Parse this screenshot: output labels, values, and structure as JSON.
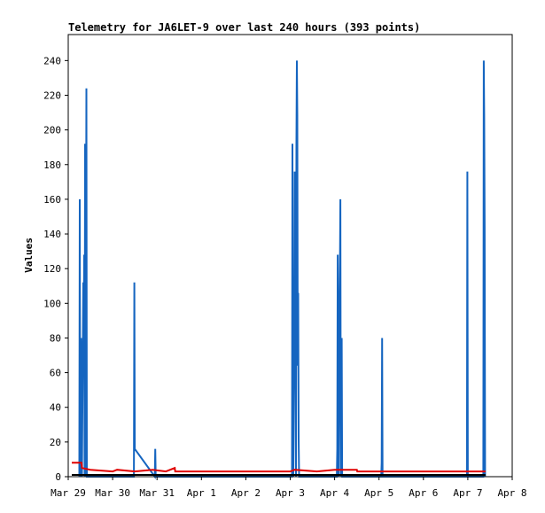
{
  "chart_data": {
    "type": "line",
    "title": "Telemetry for JA6LET-9 over last 240 hours (393 points)",
    "xlabel": "",
    "ylabel": "Values",
    "x_ticks": [
      "Mar 29",
      "Mar 30",
      "Mar 31",
      "Apr 1",
      "Apr 2",
      "Apr 3",
      "Apr 4",
      "Apr 5",
      "Apr 6",
      "Apr 7",
      "Apr 8"
    ],
    "x_unit": "days since Mar 29 00:00",
    "xlim": [
      0,
      10
    ],
    "ylim": [
      0,
      255
    ],
    "y_ticks": [
      0,
      20,
      40,
      60,
      80,
      100,
      120,
      140,
      160,
      180,
      200,
      220,
      240
    ],
    "grid": false,
    "legend": "none",
    "colors": {
      "blue": "#1565c0",
      "red": "#e00000",
      "black": "#000000"
    },
    "series": [
      {
        "color": "#1565c0",
        "points": [
          [
            0.25,
            0
          ],
          [
            0.26,
            160
          ],
          [
            0.27,
            0
          ],
          [
            0.29,
            80
          ],
          [
            0.3,
            48
          ],
          [
            0.31,
            0
          ],
          [
            0.34,
            112
          ],
          [
            0.35,
            80
          ],
          [
            0.36,
            128
          ],
          [
            0.37,
            0
          ],
          [
            0.38,
            192
          ],
          [
            0.39,
            0
          ],
          [
            0.41,
            224
          ],
          [
            0.42,
            0
          ],
          [
            1.48,
            0
          ],
          [
            1.49,
            112
          ],
          [
            1.5,
            16
          ],
          [
            1.95,
            0
          ],
          [
            1.96,
            16
          ],
          [
            1.97,
            0
          ],
          [
            5.04,
            0
          ],
          [
            5.05,
            192
          ],
          [
            5.06,
            16
          ],
          [
            5.07,
            0
          ],
          [
            5.09,
            64
          ],
          [
            5.1,
            176
          ],
          [
            5.11,
            112
          ],
          [
            5.12,
            132
          ],
          [
            5.13,
            0
          ],
          [
            5.14,
            192
          ],
          [
            5.15,
            240
          ],
          [
            5.16,
            208
          ],
          [
            5.17,
            64
          ],
          [
            5.18,
            106
          ],
          [
            5.19,
            22
          ],
          [
            5.2,
            0
          ],
          [
            6.05,
            0
          ],
          [
            6.06,
            16
          ],
          [
            6.07,
            128
          ],
          [
            6.08,
            96
          ],
          [
            6.09,
            0
          ],
          [
            6.13,
            160
          ],
          [
            6.14,
            0
          ],
          [
            6.16,
            80
          ],
          [
            6.17,
            0
          ],
          [
            7.05,
            0
          ],
          [
            7.06,
            8
          ],
          [
            7.07,
            80
          ],
          [
            7.08,
            0
          ],
          [
            8.98,
            0
          ],
          [
            8.99,
            176
          ],
          [
            9.0,
            0
          ],
          [
            9.35,
            0
          ],
          [
            9.36,
            240
          ],
          [
            9.37,
            208
          ],
          [
            9.38,
            144
          ],
          [
            9.39,
            0
          ]
        ]
      },
      {
        "color": "#e00000",
        "points": [
          [
            0.08,
            8
          ],
          [
            0.3,
            8
          ],
          [
            0.31,
            5
          ],
          [
            0.5,
            4
          ],
          [
            1.0,
            3
          ],
          [
            1.1,
            4
          ],
          [
            1.5,
            3
          ],
          [
            1.9,
            4
          ],
          [
            2.2,
            3
          ],
          [
            2.4,
            5
          ],
          [
            2.41,
            3
          ],
          [
            5.0,
            3
          ],
          [
            5.1,
            4
          ],
          [
            5.6,
            3
          ],
          [
            6.0,
            4
          ],
          [
            6.5,
            4
          ],
          [
            6.51,
            3
          ],
          [
            7.0,
            3
          ],
          [
            9.4,
            3
          ]
        ]
      },
      {
        "color": "#000000",
        "points": [
          [
            0.08,
            1
          ],
          [
            9.4,
            1
          ]
        ]
      }
    ]
  }
}
